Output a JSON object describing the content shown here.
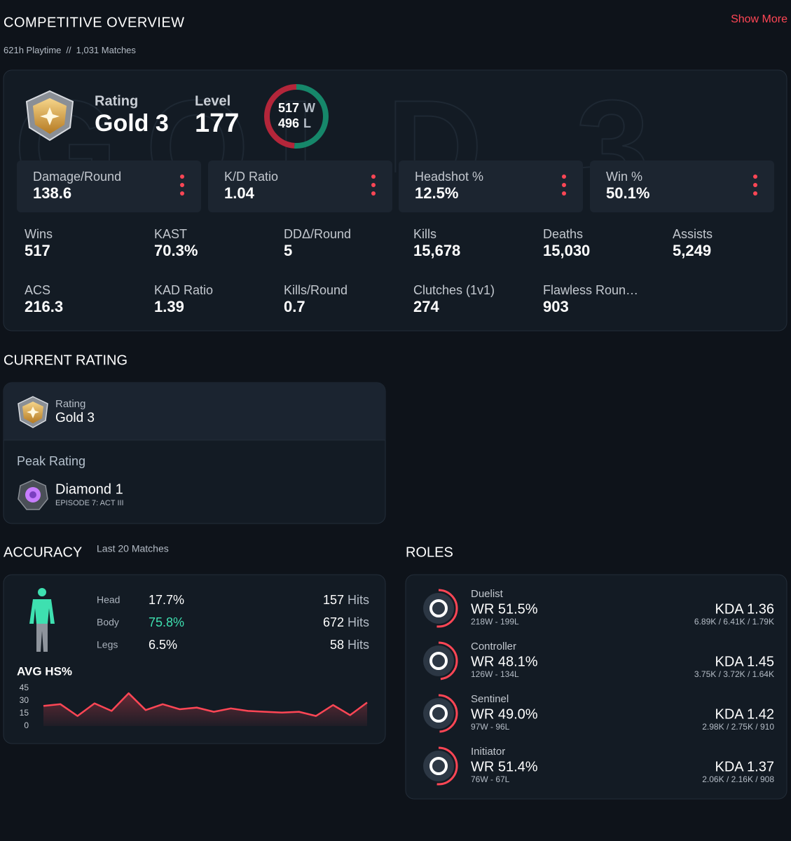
{
  "header": {
    "title": "COMPETITIVE OVERVIEW",
    "show_more": "Show More",
    "playtime": "621h Playtime",
    "separator": "//",
    "matches": "1,031 Matches"
  },
  "overview": {
    "rating_label": "Rating",
    "rating": "Gold 3",
    "level_label": "Level",
    "level": 177,
    "wins": 517,
    "wins_suffix": "W",
    "losses": 496,
    "losses_suffix": "L",
    "highlights": [
      {
        "label": "Damage/Round",
        "value": 138.6
      },
      {
        "label": "K/D Ratio",
        "value": 1.04
      },
      {
        "label": "Headshot %",
        "value": "12.5%"
      },
      {
        "label": "Win %",
        "value": "50.1%"
      }
    ],
    "stats": [
      {
        "label": "Wins",
        "value": 517
      },
      {
        "label": "KAST",
        "value": "70.3%"
      },
      {
        "label": "DDΔ/Round",
        "value": 5
      },
      {
        "label": "Kills",
        "value": "15,678"
      },
      {
        "label": "Deaths",
        "value": "15,030"
      },
      {
        "label": "Assists",
        "value": "5,249"
      },
      {
        "label": "ACS",
        "value": 216.3
      },
      {
        "label": "KAD Ratio",
        "value": 1.39
      },
      {
        "label": "Kills/Round",
        "value": 0.7
      },
      {
        "label": "Clutches (1v1)",
        "value": 274
      },
      {
        "label": "Flawless Roun…",
        "value": 903
      }
    ]
  },
  "current_rating": {
    "title": "CURRENT RATING",
    "rating_label": "Rating",
    "rating": "Gold 3",
    "peak_label": "Peak Rating",
    "peak": "Diamond 1",
    "peak_episode": "EPISODE 7: ACT III"
  },
  "accuracy": {
    "title": "ACCURACY",
    "subtitle": "Last 20 Matches",
    "hits_unit": "Hits",
    "rows": [
      {
        "part": "Head",
        "percent": "17.7%",
        "hits": 157
      },
      {
        "part": "Body",
        "percent": "75.8%",
        "hits": 672,
        "highlight": true
      },
      {
        "part": "Legs",
        "percent": "6.5%",
        "hits": 58
      }
    ],
    "chart": {
      "type": "line",
      "title": "AVG HS%",
      "color": "#ff4655",
      "values": [
        24,
        26,
        12,
        27,
        18,
        39,
        19,
        26,
        20,
        22,
        17,
        21,
        18,
        17,
        16,
        17,
        12,
        25,
        13,
        28
      ],
      "ylim": [
        0,
        45
      ],
      "yticks": [
        0,
        15,
        30,
        45
      ]
    }
  },
  "roles": {
    "title": "ROLES",
    "items": [
      {
        "name": "Duelist",
        "wr": 51.5,
        "wr_label": "WR 51.5%",
        "record": "218W - 199L",
        "kda": "KDA 1.36",
        "kda_detail": "6.89K / 6.41K / 1.79K"
      },
      {
        "name": "Controller",
        "wr": 48.1,
        "wr_label": "WR 48.1%",
        "record": "126W - 134L",
        "kda": "KDA 1.45",
        "kda_detail": "3.75K / 3.72K / 1.64K"
      },
      {
        "name": "Sentinel",
        "wr": 49.0,
        "wr_label": "WR 49.0%",
        "record": "97W - 96L",
        "kda": "KDA 1.42",
        "kda_detail": "2.98K / 2.75K / 910"
      },
      {
        "name": "Initiator",
        "wr": 51.4,
        "wr_label": "WR 51.4%",
        "record": "76W - 67L",
        "kda": "KDA 1.37",
        "kda_detail": "2.06K / 2.16K / 908"
      }
    ]
  }
}
